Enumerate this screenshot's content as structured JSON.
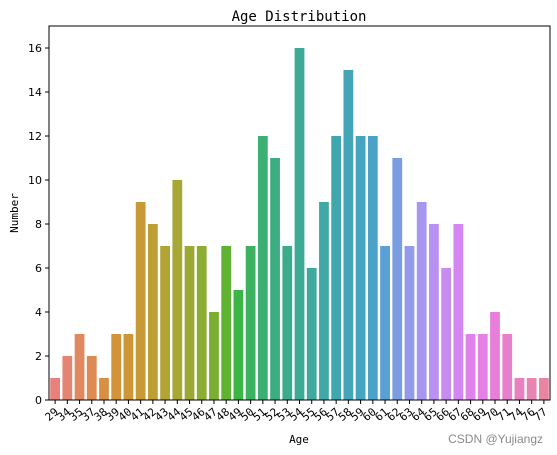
{
  "chart_data": {
    "type": "bar",
    "title": "Age Distribution",
    "xlabel": "Age",
    "ylabel": "Number",
    "ylim": [
      0,
      17
    ],
    "yticks": [
      0,
      2,
      4,
      6,
      8,
      10,
      12,
      14,
      16
    ],
    "grid": false,
    "legend": "none",
    "categories": [
      "29",
      "34",
      "35",
      "37",
      "38",
      "39",
      "40",
      "41",
      "42",
      "43",
      "44",
      "45",
      "46",
      "47",
      "48",
      "49",
      "50",
      "51",
      "52",
      "53",
      "54",
      "55",
      "56",
      "57",
      "58",
      "59",
      "60",
      "61",
      "62",
      "63",
      "64",
      "65",
      "66",
      "67",
      "68",
      "69",
      "70",
      "71",
      "74",
      "76",
      "77"
    ],
    "values": [
      1,
      2,
      3,
      2,
      1,
      3,
      3,
      9,
      8,
      7,
      10,
      7,
      7,
      4,
      7,
      5,
      7,
      12,
      11,
      7,
      16,
      6,
      9,
      12,
      15,
      12,
      12,
      7,
      11,
      7,
      9,
      8,
      6,
      8,
      3,
      3,
      4,
      3,
      1,
      1,
      1
    ],
    "colors": [
      "#e8807c",
      "#e48472",
      "#e0885f",
      "#dd8b52",
      "#d88f44",
      "#d29339",
      "#cd9637",
      "#c79a36",
      "#bd9f35",
      "#b3a335",
      "#a8a634",
      "#9ba934",
      "#8cac33",
      "#7aaf33",
      "#5fb232",
      "#3cb446",
      "#3cb160",
      "#3caf72",
      "#3cad80",
      "#3cab8b",
      "#3daa95",
      "#3fa99e",
      "#40a8a7",
      "#41a7af",
      "#43a5b7",
      "#45a4c0",
      "#4aa2c9",
      "#59a0d4",
      "#7a9de2",
      "#939aea",
      "#a796ef",
      "#b891f2",
      "#c78cf2",
      "#d487f0",
      "#df83ec",
      "#e680e4",
      "#e87ed9",
      "#e87fcc",
      "#e881bf",
      "#e884b1",
      "#e886a2"
    ]
  },
  "watermark": "CSDN @Yujiangz"
}
